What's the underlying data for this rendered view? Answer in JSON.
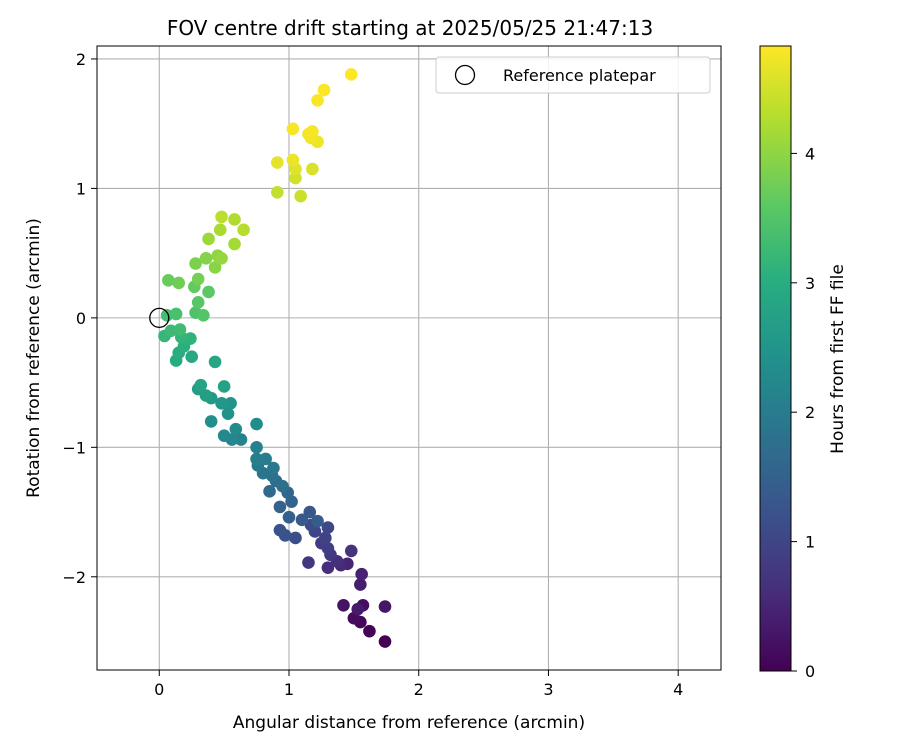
{
  "chart_data": {
    "type": "scatter",
    "title": "FOV centre drift starting at 2025/05/25 21:47:13",
    "xlabel": "Angular distance from reference (arcmin)",
    "ylabel": "Rotation from reference (arcmin)",
    "xlim": [
      -0.48,
      4.33
    ],
    "ylim": [
      -2.72,
      2.1
    ],
    "xticks": [
      0,
      1,
      2,
      3,
      4
    ],
    "yticks": [
      -2,
      -1,
      0,
      1,
      2
    ],
    "grid": true,
    "legend": {
      "position": "top-right",
      "entries": [
        "Reference platepar"
      ]
    },
    "reference_point": {
      "name": "Reference platepar",
      "x": 0.0,
      "y": 0.0
    },
    "colorbar": {
      "label": "Hours from first FF file",
      "min": 0,
      "max": 4.83,
      "ticks": [
        0,
        1,
        2,
        3,
        4
      ],
      "colormap": "viridis"
    },
    "series": [
      {
        "name": "FOV centre",
        "points": [
          {
            "x": 1.74,
            "y": -2.5,
            "t": 0.0
          },
          {
            "x": 1.62,
            "y": -2.42,
            "t": 0.05
          },
          {
            "x": 1.55,
            "y": -2.35,
            "t": 0.1
          },
          {
            "x": 1.5,
            "y": -2.32,
            "t": 0.15
          },
          {
            "x": 1.57,
            "y": -2.22,
            "t": 0.2
          },
          {
            "x": 1.42,
            "y": -2.22,
            "t": 0.25
          },
          {
            "x": 1.74,
            "y": -2.23,
            "t": 0.3
          },
          {
            "x": 1.53,
            "y": -2.25,
            "t": 0.35
          },
          {
            "x": 1.55,
            "y": -2.06,
            "t": 0.4
          },
          {
            "x": 1.56,
            "y": -1.98,
            "t": 0.45
          },
          {
            "x": 1.45,
            "y": -1.9,
            "t": 0.5
          },
          {
            "x": 1.4,
            "y": -1.91,
            "t": 0.55
          },
          {
            "x": 1.3,
            "y": -1.93,
            "t": 0.6
          },
          {
            "x": 1.37,
            "y": -1.88,
            "t": 0.65
          },
          {
            "x": 1.48,
            "y": -1.8,
            "t": 0.7
          },
          {
            "x": 1.15,
            "y": -1.89,
            "t": 0.75
          },
          {
            "x": 1.32,
            "y": -1.83,
            "t": 0.8
          },
          {
            "x": 1.25,
            "y": -1.74,
            "t": 0.85
          },
          {
            "x": 1.3,
            "y": -1.78,
            "t": 0.9
          },
          {
            "x": 1.28,
            "y": -1.7,
            "t": 0.95
          },
          {
            "x": 1.2,
            "y": -1.65,
            "t": 1.0
          },
          {
            "x": 1.3,
            "y": -1.62,
            "t": 1.05
          },
          {
            "x": 1.17,
            "y": -1.6,
            "t": 1.1
          },
          {
            "x": 1.05,
            "y": -1.7,
            "t": 1.15
          },
          {
            "x": 0.97,
            "y": -1.68,
            "t": 1.2
          },
          {
            "x": 0.93,
            "y": -1.64,
            "t": 1.25
          },
          {
            "x": 1.16,
            "y": -1.5,
            "t": 1.3
          },
          {
            "x": 1.1,
            "y": -1.56,
            "t": 1.35
          },
          {
            "x": 1.22,
            "y": -1.57,
            "t": 1.4
          },
          {
            "x": 1.0,
            "y": -1.54,
            "t": 1.45
          },
          {
            "x": 0.93,
            "y": -1.46,
            "t": 1.5
          },
          {
            "x": 1.02,
            "y": -1.42,
            "t": 1.55
          },
          {
            "x": 0.99,
            "y": -1.35,
            "t": 1.6
          },
          {
            "x": 0.85,
            "y": -1.34,
            "t": 1.65
          },
          {
            "x": 0.9,
            "y": -1.26,
            "t": 1.7
          },
          {
            "x": 0.95,
            "y": -1.3,
            "t": 1.75
          },
          {
            "x": 0.87,
            "y": -1.22,
            "t": 1.8
          },
          {
            "x": 0.8,
            "y": -1.2,
            "t": 1.85
          },
          {
            "x": 0.88,
            "y": -1.16,
            "t": 1.9
          },
          {
            "x": 0.76,
            "y": -1.14,
            "t": 1.95
          },
          {
            "x": 0.82,
            "y": -1.09,
            "t": 2.0
          },
          {
            "x": 0.75,
            "y": -1.09,
            "t": 2.05
          },
          {
            "x": 0.75,
            "y": -1.0,
            "t": 2.1
          },
          {
            "x": 0.63,
            "y": -0.94,
            "t": 2.15
          },
          {
            "x": 0.56,
            "y": -0.94,
            "t": 2.2
          },
          {
            "x": 0.5,
            "y": -0.91,
            "t": 2.25
          },
          {
            "x": 0.59,
            "y": -0.86,
            "t": 2.3
          },
          {
            "x": 0.75,
            "y": -0.82,
            "t": 2.35
          },
          {
            "x": 0.4,
            "y": -0.8,
            "t": 2.4
          },
          {
            "x": 0.53,
            "y": -0.74,
            "t": 2.45
          },
          {
            "x": 0.55,
            "y": -0.66,
            "t": 2.5
          },
          {
            "x": 0.48,
            "y": -0.66,
            "t": 2.55
          },
          {
            "x": 0.4,
            "y": -0.62,
            "t": 2.6
          },
          {
            "x": 0.3,
            "y": -0.55,
            "t": 2.65
          },
          {
            "x": 0.36,
            "y": -0.6,
            "t": 2.7
          },
          {
            "x": 0.5,
            "y": -0.53,
            "t": 2.75
          },
          {
            "x": 0.32,
            "y": -0.52,
            "t": 2.8
          },
          {
            "x": 0.43,
            "y": -0.34,
            "t": 2.85
          },
          {
            "x": 0.25,
            "y": -0.3,
            "t": 2.9
          },
          {
            "x": 0.13,
            "y": -0.33,
            "t": 2.95
          },
          {
            "x": 0.15,
            "y": -0.27,
            "t": 3.0
          },
          {
            "x": 0.19,
            "y": -0.22,
            "t": 3.05
          },
          {
            "x": 0.24,
            "y": -0.16,
            "t": 3.1
          },
          {
            "x": 0.17,
            "y": -0.15,
            "t": 3.15
          },
          {
            "x": 0.04,
            "y": -0.14,
            "t": 3.2
          },
          {
            "x": 0.09,
            "y": -0.1,
            "t": 3.25
          },
          {
            "x": 0.16,
            "y": -0.09,
            "t": 3.3
          },
          {
            "x": 0.06,
            "y": 0.02,
            "t": 3.35
          },
          {
            "x": 0.13,
            "y": 0.03,
            "t": 3.4
          },
          {
            "x": 0.28,
            "y": 0.04,
            "t": 3.45
          },
          {
            "x": 0.34,
            "y": 0.02,
            "t": 3.5
          },
          {
            "x": 0.3,
            "y": 0.12,
            "t": 3.55
          },
          {
            "x": 0.38,
            "y": 0.2,
            "t": 3.6
          },
          {
            "x": 0.27,
            "y": 0.24,
            "t": 3.65
          },
          {
            "x": 0.07,
            "y": 0.29,
            "t": 3.7
          },
          {
            "x": 0.15,
            "y": 0.27,
            "t": 3.75
          },
          {
            "x": 0.3,
            "y": 0.3,
            "t": 3.8
          },
          {
            "x": 0.28,
            "y": 0.42,
            "t": 3.85
          },
          {
            "x": 0.36,
            "y": 0.46,
            "t": 3.9
          },
          {
            "x": 0.43,
            "y": 0.39,
            "t": 3.95
          },
          {
            "x": 0.45,
            "y": 0.48,
            "t": 4.0
          },
          {
            "x": 0.48,
            "y": 0.46,
            "t": 4.05
          },
          {
            "x": 0.38,
            "y": 0.61,
            "t": 4.1
          },
          {
            "x": 0.58,
            "y": 0.57,
            "t": 4.15
          },
          {
            "x": 0.47,
            "y": 0.68,
            "t": 4.2
          },
          {
            "x": 0.58,
            "y": 0.76,
            "t": 4.25
          },
          {
            "x": 0.65,
            "y": 0.68,
            "t": 4.3
          },
          {
            "x": 0.48,
            "y": 0.78,
            "t": 4.35
          },
          {
            "x": 0.91,
            "y": 0.97,
            "t": 4.4
          },
          {
            "x": 1.09,
            "y": 0.94,
            "t": 4.45
          },
          {
            "x": 1.05,
            "y": 1.08,
            "t": 4.5
          },
          {
            "x": 1.18,
            "y": 1.15,
            "t": 4.55
          },
          {
            "x": 1.05,
            "y": 1.15,
            "t": 4.6
          },
          {
            "x": 0.91,
            "y": 1.2,
            "t": 4.65
          },
          {
            "x": 1.03,
            "y": 1.22,
            "t": 4.7
          },
          {
            "x": 1.22,
            "y": 1.36,
            "t": 4.72
          },
          {
            "x": 1.17,
            "y": 1.39,
            "t": 4.74
          },
          {
            "x": 1.15,
            "y": 1.42,
            "t": 4.76
          },
          {
            "x": 1.18,
            "y": 1.44,
            "t": 4.77
          },
          {
            "x": 1.03,
            "y": 1.46,
            "t": 4.78
          },
          {
            "x": 1.22,
            "y": 1.68,
            "t": 4.8
          },
          {
            "x": 1.27,
            "y": 1.76,
            "t": 4.81
          },
          {
            "x": 1.48,
            "y": 1.88,
            "t": 4.83
          }
        ]
      }
    ]
  }
}
